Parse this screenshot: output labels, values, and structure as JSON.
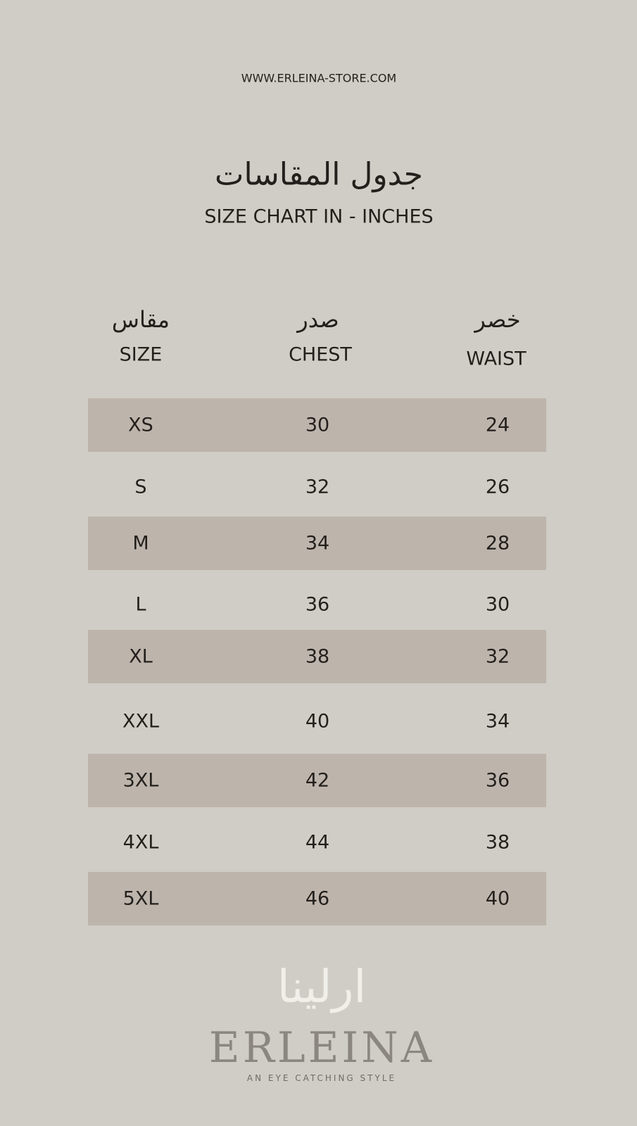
{
  "header": {
    "url": "WWW.ERLEINA-STORE.COM",
    "title_ar": "جدول المقاسات",
    "title_en": "SIZE CHART IN - INCHES"
  },
  "columns": [
    {
      "ar": "مقاس",
      "en": "SIZE"
    },
    {
      "ar": "صدر",
      "en": "CHEST"
    },
    {
      "ar": "خصر",
      "en": "WAIST"
    }
  ],
  "rows": [
    {
      "size": "XS",
      "chest": "30",
      "waist": "24"
    },
    {
      "size": "S",
      "chest": "32",
      "waist": "26"
    },
    {
      "size": "M",
      "chest": "34",
      "waist": "28"
    },
    {
      "size": "L",
      "chest": "36",
      "waist": "30"
    },
    {
      "size": "XL",
      "chest": "38",
      "waist": "32"
    },
    {
      "size": "XXL",
      "chest": "40",
      "waist": "34"
    },
    {
      "size": "3XL",
      "chest": "42",
      "waist": "36"
    },
    {
      "size": "4XL",
      "chest": "44",
      "waist": "38"
    },
    {
      "size": "5XL",
      "chest": "46",
      "waist": "40"
    }
  ],
  "logo": {
    "ar": "ارلينا",
    "en": "ERLEINA",
    "tagline": "AN EYE CATCHING STYLE"
  },
  "colors": {
    "background": "#d0cdc6",
    "band": "#bdb5ac",
    "text": "#231f1c"
  }
}
